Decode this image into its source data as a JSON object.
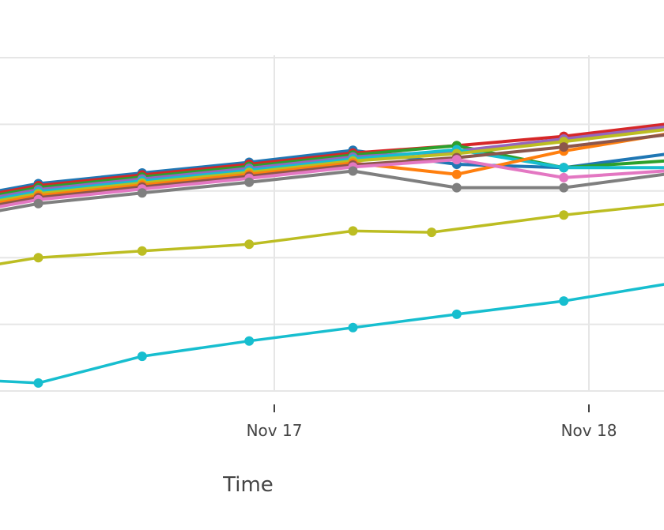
{
  "chart_data": {
    "type": "line",
    "title": "",
    "xlabel": "Time",
    "ylabel": "",
    "grid": true,
    "x_tick_labels": [
      {
        "label": "Nov 17",
        "value": 1.0
      },
      {
        "label": "Nov 18",
        "value": 2.0
      }
    ],
    "xlim": [
      0.13,
      2.24
    ],
    "ylim": [
      -0.5,
      5.0
    ],
    "y_gridlines": [
      0,
      1,
      2,
      3,
      4,
      5
    ],
    "series": [
      {
        "color": "#1f77b4",
        "x": [
          0.12,
          0.25,
          0.58,
          0.92,
          1.25,
          1.58,
          1.92,
          2.24
        ],
        "y": [
          3.0,
          3.11,
          3.27,
          3.43,
          3.61,
          3.4,
          3.35,
          3.55
        ]
      },
      {
        "color": "#d62728",
        "x": [
          0.12,
          0.25,
          0.58,
          0.92,
          1.25,
          1.58,
          1.92,
          2.24
        ],
        "y": [
          2.97,
          3.08,
          3.24,
          3.4,
          3.57,
          3.68,
          3.82,
          4.0
        ]
      },
      {
        "color": "#2ca02c",
        "x": [
          0.12,
          0.25,
          0.58,
          0.92,
          1.25,
          1.58,
          1.92,
          2.24
        ],
        "y": [
          2.94,
          3.05,
          3.21,
          3.37,
          3.54,
          3.68,
          3.35,
          3.45
        ]
      },
      {
        "color": "#9467bd",
        "x": [
          0.12,
          0.25,
          0.58,
          0.92,
          1.25,
          1.58,
          1.92,
          2.24
        ],
        "y": [
          2.91,
          3.02,
          3.18,
          3.34,
          3.51,
          3.6,
          3.78,
          3.96
        ]
      },
      {
        "color": "#17becf",
        "x": [
          0.12,
          0.25,
          0.58,
          0.92,
          1.25,
          1.58,
          1.92,
          2.24
        ],
        "y": [
          2.88,
          2.99,
          3.15,
          3.31,
          3.48,
          3.62,
          3.35,
          3.35
        ]
      },
      {
        "color": "#bcbd22",
        "x": [
          0.12,
          0.25,
          0.58,
          0.92,
          1.25,
          1.58,
          1.92,
          2.24
        ],
        "y": [
          2.85,
          2.96,
          3.12,
          3.28,
          3.45,
          3.56,
          3.74,
          3.92
        ]
      },
      {
        "color": "#ff7f0e",
        "x": [
          0.12,
          0.25,
          0.58,
          0.92,
          1.25,
          1.58,
          1.92,
          2.24
        ],
        "y": [
          2.82,
          2.93,
          3.09,
          3.25,
          3.42,
          3.25,
          3.6,
          3.85
        ]
      },
      {
        "color": "#8c564b",
        "x": [
          0.12,
          0.25,
          0.58,
          0.92,
          1.25,
          1.58,
          1.92,
          2.24
        ],
        "y": [
          2.79,
          2.9,
          3.06,
          3.22,
          3.39,
          3.5,
          3.66,
          3.84
        ]
      },
      {
        "color": "#e377c2",
        "x": [
          0.12,
          0.25,
          0.58,
          0.92,
          1.25,
          1.58,
          1.92,
          2.24
        ],
        "y": [
          2.76,
          2.87,
          3.03,
          3.19,
          3.36,
          3.47,
          3.2,
          3.3
        ]
      },
      {
        "color": "#7f7f7f",
        "x": [
          0.12,
          0.25,
          0.58,
          0.92,
          1.25,
          1.58,
          1.92,
          2.24
        ],
        "y": [
          2.7,
          2.81,
          2.97,
          3.13,
          3.3,
          3.05,
          3.05,
          3.25
        ]
      },
      {
        "color": "#bcbd22",
        "x": [
          0.12,
          0.25,
          0.58,
          0.92,
          1.25,
          1.5,
          1.92,
          2.24
        ],
        "y": [
          1.9,
          2.0,
          2.1,
          2.2,
          2.4,
          2.38,
          2.64,
          2.8
        ]
      },
      {
        "color": "#17becf",
        "x": [
          0.12,
          0.25,
          0.58,
          0.92,
          1.25,
          1.58,
          1.92,
          2.24
        ],
        "y": [
          0.15,
          0.12,
          0.52,
          0.75,
          0.95,
          1.15,
          1.35,
          1.6
        ]
      }
    ]
  }
}
